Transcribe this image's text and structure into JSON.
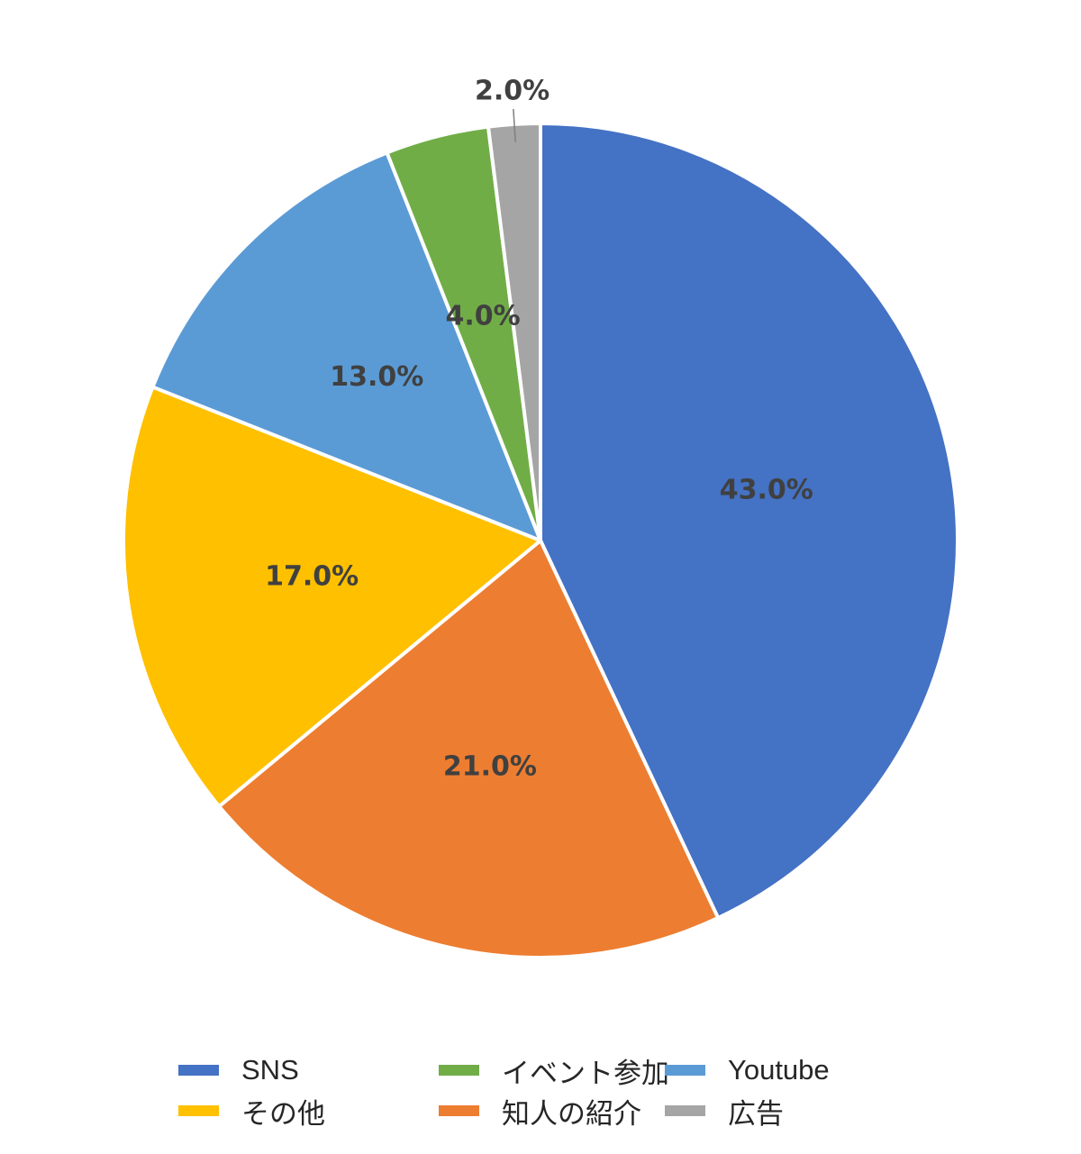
{
  "chart_data": {
    "type": "pie",
    "start_angle": "top",
    "direction": "clockwise",
    "slices": [
      {
        "label": "SNS",
        "value": 43.0,
        "display": "43.0%",
        "color": "#4472C4"
      },
      {
        "label": "知人の紹介",
        "value": 21.0,
        "display": "21.0%",
        "color": "#ED7D31"
      },
      {
        "label": "その他",
        "value": 17.0,
        "display": "17.0%",
        "color": "#FFC000"
      },
      {
        "label": "Youtube",
        "value": 13.0,
        "display": "13.0%",
        "color": "#5B9BD5"
      },
      {
        "label": "イベント参加",
        "value": 4.0,
        "display": "4.0%",
        "color": "#70AD47"
      },
      {
        "label": "広告",
        "value": 2.0,
        "display": "2.0%",
        "color": "#A5A5A5"
      }
    ],
    "legend_placement": "bottom",
    "legend_order": [
      0,
      2,
      4,
      1,
      3,
      5
    ]
  }
}
